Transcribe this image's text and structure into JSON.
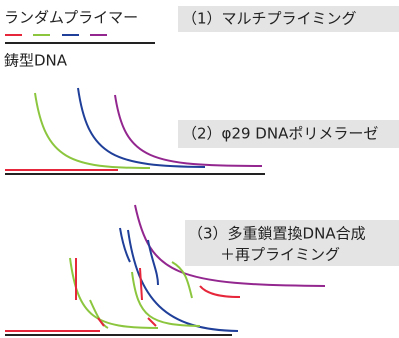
{
  "primer_legend": "ランダムプライマー",
  "template_label": "鋳型DNA",
  "steps": [
    {
      "label": "（1）マルチプライミング"
    },
    {
      "label": "（2）φ29 DNAポリメラーゼ"
    },
    {
      "label": "（3）多重鎖置換DNA合成",
      "sub": "＋再プライミング"
    }
  ]
}
